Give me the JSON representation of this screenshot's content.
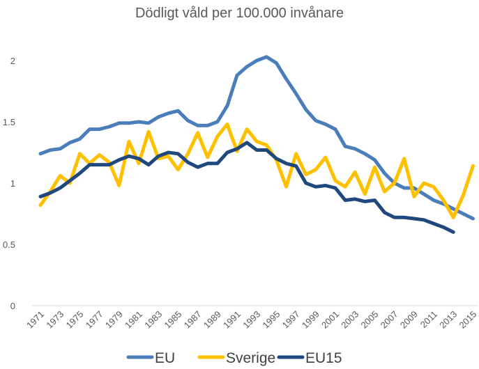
{
  "chart_data": {
    "type": "line",
    "title": "Dödligt våld per 100.000 invånare",
    "xlabel": "",
    "ylabel": "",
    "ylim": [
      0,
      2
    ],
    "yticks": [
      "0",
      "0.5",
      "1",
      "1.5",
      "2"
    ],
    "grid": false,
    "legend": "bottom",
    "x": [
      1971,
      1972,
      1973,
      1974,
      1975,
      1976,
      1977,
      1978,
      1979,
      1980,
      1981,
      1982,
      1983,
      1984,
      1985,
      1986,
      1987,
      1988,
      1989,
      1990,
      1991,
      1992,
      1993,
      1994,
      1995,
      1996,
      1997,
      1998,
      1999,
      2000,
      2001,
      2002,
      2003,
      2004,
      2005,
      2006,
      2007,
      2008,
      2009,
      2010,
      2011,
      2012,
      2013,
      2014,
      2015
    ],
    "xtick_labels": [
      "1971",
      "1973",
      "1975",
      "1977",
      "1979",
      "1981",
      "1983",
      "1985",
      "1987",
      "1989",
      "1991",
      "1993",
      "1995",
      "1997",
      "1999",
      "2001",
      "2003",
      "2005",
      "2007",
      "2009",
      "2011",
      "2013",
      "2015"
    ],
    "series": [
      {
        "name": "EU",
        "color": "#4a7ebb",
        "values": [
          1.24,
          1.27,
          1.28,
          1.33,
          1.36,
          1.44,
          1.44,
          1.46,
          1.49,
          1.49,
          1.5,
          1.49,
          1.54,
          1.57,
          1.59,
          1.51,
          1.47,
          1.47,
          1.5,
          1.63,
          1.88,
          1.95,
          2.0,
          2.03,
          1.98,
          1.85,
          1.73,
          1.6,
          1.51,
          1.48,
          1.44,
          1.3,
          1.28,
          1.24,
          1.19,
          1.08,
          1.0,
          0.96,
          0.96,
          0.91,
          0.86,
          0.83,
          0.79,
          0.75,
          0.71
        ]
      },
      {
        "name": "Sverige",
        "color": "#ffc000",
        "values": [
          0.82,
          0.93,
          1.06,
          1.0,
          1.24,
          1.16,
          1.23,
          1.17,
          0.98,
          1.34,
          1.16,
          1.42,
          1.2,
          1.22,
          1.11,
          1.24,
          1.41,
          1.21,
          1.38,
          1.48,
          1.26,
          1.44,
          1.34,
          1.31,
          1.19,
          0.97,
          1.24,
          1.07,
          1.11,
          1.21,
          1.02,
          0.97,
          1.09,
          0.91,
          1.13,
          0.93,
          1.0,
          1.2,
          0.89,
          1.0,
          0.97,
          0.86,
          0.72,
          0.9,
          1.14
        ]
      },
      {
        "name": "EU15",
        "color": "#1f497d",
        "values": [
          0.89,
          0.92,
          0.96,
          1.02,
          1.08,
          1.15,
          1.15,
          1.15,
          1.19,
          1.22,
          1.2,
          1.15,
          1.22,
          1.25,
          1.24,
          1.17,
          1.13,
          1.16,
          1.16,
          1.25,
          1.28,
          1.33,
          1.27,
          1.27,
          1.2,
          1.16,
          1.14,
          1.0,
          0.97,
          0.98,
          0.96,
          0.86,
          0.87,
          0.85,
          0.86,
          0.76,
          0.72,
          0.72,
          0.71,
          0.7,
          0.67,
          0.64,
          0.6,
          null,
          null
        ]
      }
    ]
  }
}
